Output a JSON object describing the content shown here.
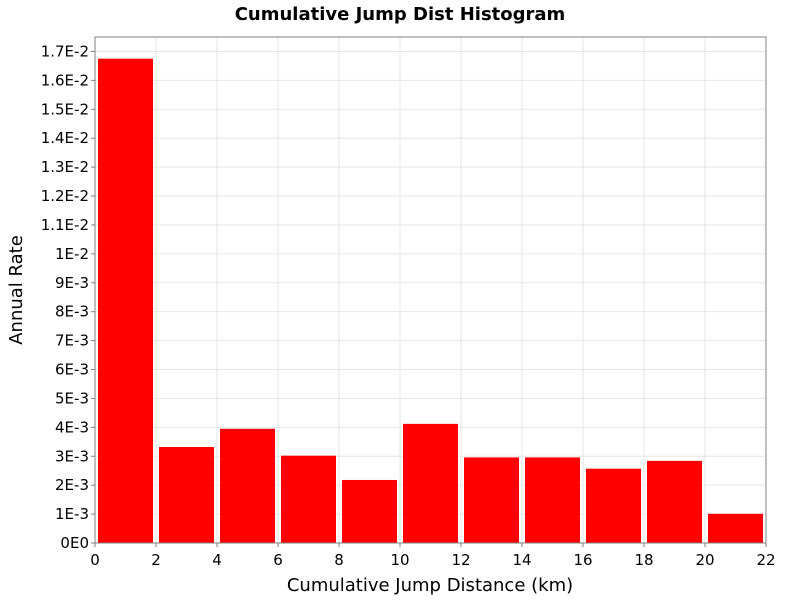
{
  "chart_data": {
    "type": "bar",
    "title": "Cumulative Jump Dist Histogram",
    "xlabel": "Cumulative Jump Distance (km)",
    "ylabel": "Annual Rate",
    "xlim": [
      0,
      22
    ],
    "ylim": [
      0,
      0.0175
    ],
    "grid": true,
    "legend": "none",
    "bar_color": "#ff0000",
    "x_ticks": [
      {
        "value": 0,
        "label": "0"
      },
      {
        "value": 2,
        "label": "2"
      },
      {
        "value": 4,
        "label": "4"
      },
      {
        "value": 6,
        "label": "6"
      },
      {
        "value": 8,
        "label": "8"
      },
      {
        "value": 10,
        "label": "10"
      },
      {
        "value": 12,
        "label": "12"
      },
      {
        "value": 14,
        "label": "14"
      },
      {
        "value": 16,
        "label": "16"
      },
      {
        "value": 18,
        "label": "18"
      },
      {
        "value": 20,
        "label": "20"
      },
      {
        "value": 22,
        "label": "22"
      }
    ],
    "y_ticks": [
      {
        "value": 0,
        "label": "0E0"
      },
      {
        "value": 0.001,
        "label": "1E-3"
      },
      {
        "value": 0.002,
        "label": "2E-3"
      },
      {
        "value": 0.003,
        "label": "3E-3"
      },
      {
        "value": 0.004,
        "label": "4E-3"
      },
      {
        "value": 0.005,
        "label": "5E-3"
      },
      {
        "value": 0.006,
        "label": "6E-3"
      },
      {
        "value": 0.007,
        "label": "7E-3"
      },
      {
        "value": 0.008,
        "label": "8E-3"
      },
      {
        "value": 0.009,
        "label": "9E-3"
      },
      {
        "value": 0.01,
        "label": "1E-2"
      },
      {
        "value": 0.011,
        "label": "1.1E-2"
      },
      {
        "value": 0.012,
        "label": "1.2E-2"
      },
      {
        "value": 0.013,
        "label": "1.3E-2"
      },
      {
        "value": 0.014,
        "label": "1.4E-2"
      },
      {
        "value": 0.015,
        "label": "1.5E-2"
      },
      {
        "value": 0.016,
        "label": "1.6E-2"
      },
      {
        "value": 0.017,
        "label": "1.7E-2"
      }
    ],
    "bars": [
      {
        "x_start": 0,
        "x_end": 2,
        "value": 0.01675
      },
      {
        "x_start": 2,
        "x_end": 4,
        "value": 0.00332
      },
      {
        "x_start": 4,
        "x_end": 6,
        "value": 0.00395
      },
      {
        "x_start": 6,
        "x_end": 8,
        "value": 0.00302
      },
      {
        "x_start": 8,
        "x_end": 10,
        "value": 0.00218
      },
      {
        "x_start": 10,
        "x_end": 12,
        "value": 0.00412
      },
      {
        "x_start": 12,
        "x_end": 14,
        "value": 0.00296
      },
      {
        "x_start": 14,
        "x_end": 16,
        "value": 0.00296
      },
      {
        "x_start": 16,
        "x_end": 18,
        "value": 0.00257
      },
      {
        "x_start": 18,
        "x_end": 20,
        "value": 0.00284
      },
      {
        "x_start": 20,
        "x_end": 22,
        "value": 0.00101
      }
    ]
  }
}
